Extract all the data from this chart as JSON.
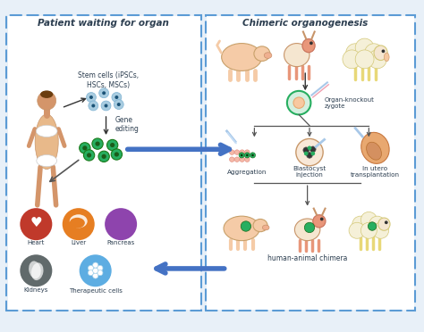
{
  "bg_color": "#e8f0f8",
  "left_panel_title": "Patient waiting for organ",
  "right_panel_title": "Chimeric organogenesis",
  "left_labels": {
    "stem_cells": "Stem cells (iPSCs,\nHSCs, MSCs)",
    "gene_editing": "Gene\nediting",
    "heart": "Heart",
    "liver": "Liver",
    "pancreas": "Pancreas",
    "kidneys": "Kidneys",
    "therapeutic": "Therapeutic cells"
  },
  "right_labels": {
    "organ_knockout": "Organ-knockout\nzygote",
    "aggregation": "Aggregation",
    "blastocyst": "Blastocyst\ninjection",
    "in_utero": "In utero\ntransplantation",
    "chimera": "human-animal chimera"
  },
  "colors": {
    "panel_border": "#5b9bd5",
    "arrow_blue": "#4472c4",
    "arrow_dark": "#333333",
    "stem_cell_blue": "#a8cce0",
    "stem_cell_dark": "#1a5276",
    "heart_bg": "#c0392b",
    "liver_bg": "#e67e22",
    "pancreas_bg": "#8e44ad",
    "kidney_bg": "#616a6b",
    "therapeutic_bg": "#5dade2",
    "zygote_green": "#27ae60",
    "chimera_green": "#1e8449"
  }
}
